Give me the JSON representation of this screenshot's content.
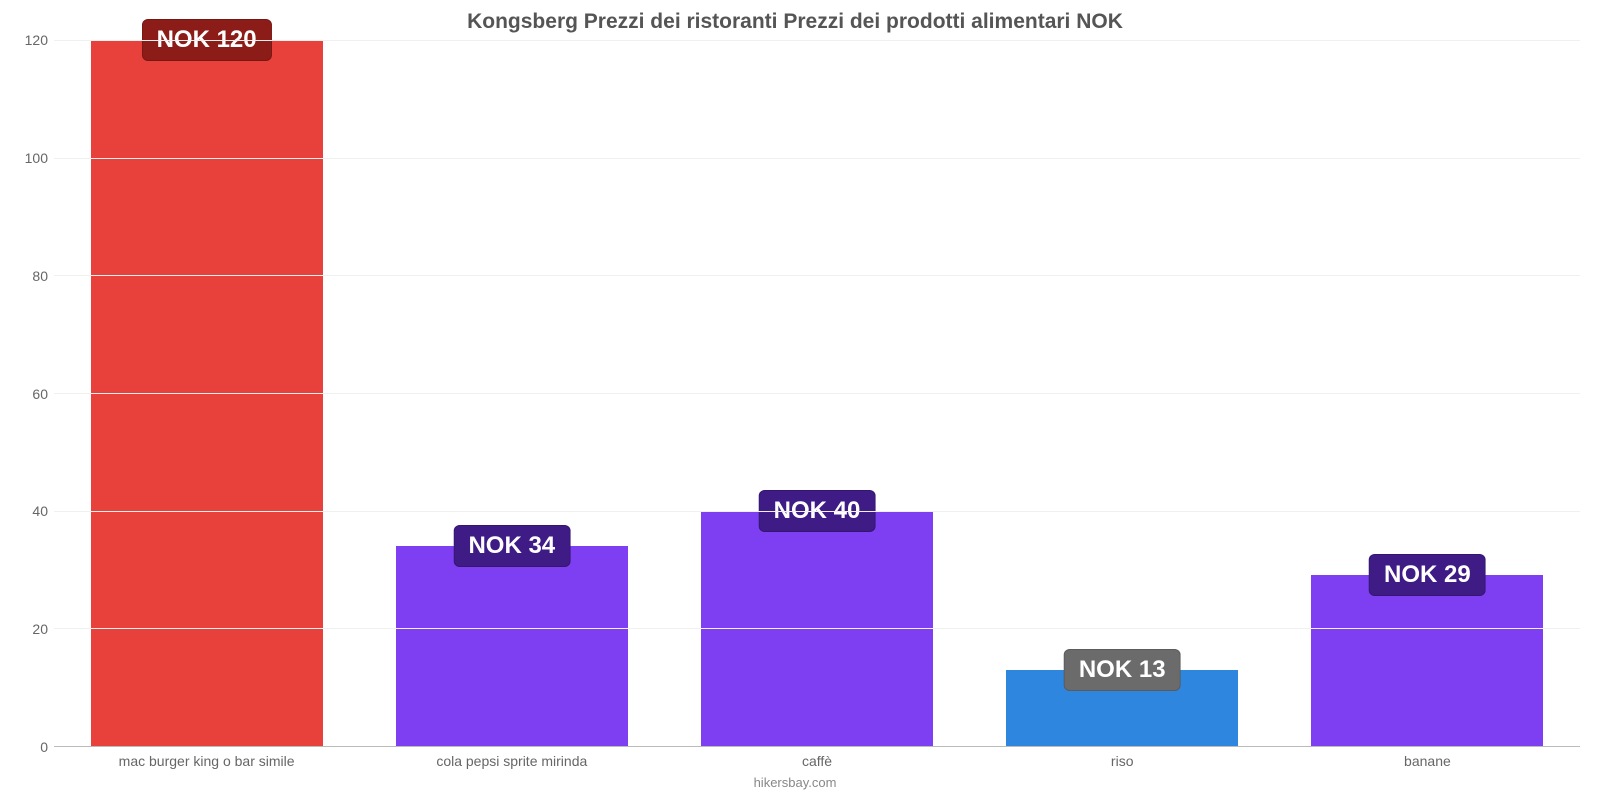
{
  "chart": {
    "type": "bar",
    "title": "Kongsberg Prezzi dei ristoranti Prezzi dei prodotti alimentari NOK",
    "title_color": "#555555",
    "title_fontsize": 21,
    "attribution": "hikersbay.com",
    "attribution_color": "#888888",
    "background_color": "#ffffff",
    "grid_color": "#f0f0f0",
    "axis_color": "#bbbbbb",
    "tick_label_color": "#666666",
    "tick_label_fontsize": 14,
    "y": {
      "min": 0,
      "max": 120,
      "ticks": [
        0,
        20,
        40,
        60,
        80,
        100,
        120
      ]
    },
    "bar_width_pct": 76,
    "value_label_fontsize": 24,
    "categories": [
      {
        "label": "mac burger king o bar simile",
        "value": 120,
        "value_label": "NOK 120",
        "bar_color": "#e8403a",
        "badge_bg": "#8c1c18",
        "badge_text": "#ffffff"
      },
      {
        "label": "cola pepsi sprite mirinda",
        "value": 34,
        "value_label": "NOK 34",
        "bar_color": "#7e3ff2",
        "badge_bg": "#3e1b85",
        "badge_text": "#ffffff"
      },
      {
        "label": "caffè",
        "value": 40,
        "value_label": "NOK 40",
        "bar_color": "#7e3ff2",
        "badge_bg": "#3e1b85",
        "badge_text": "#ffffff"
      },
      {
        "label": "riso",
        "value": 13,
        "value_label": "NOK 13",
        "bar_color": "#2e86de",
        "badge_bg": "#6b6b6b",
        "badge_text": "#ffffff"
      },
      {
        "label": "banane",
        "value": 29,
        "value_label": "NOK 29",
        "bar_color": "#7e3ff2",
        "badge_bg": "#3e1b85",
        "badge_text": "#ffffff"
      }
    ]
  }
}
